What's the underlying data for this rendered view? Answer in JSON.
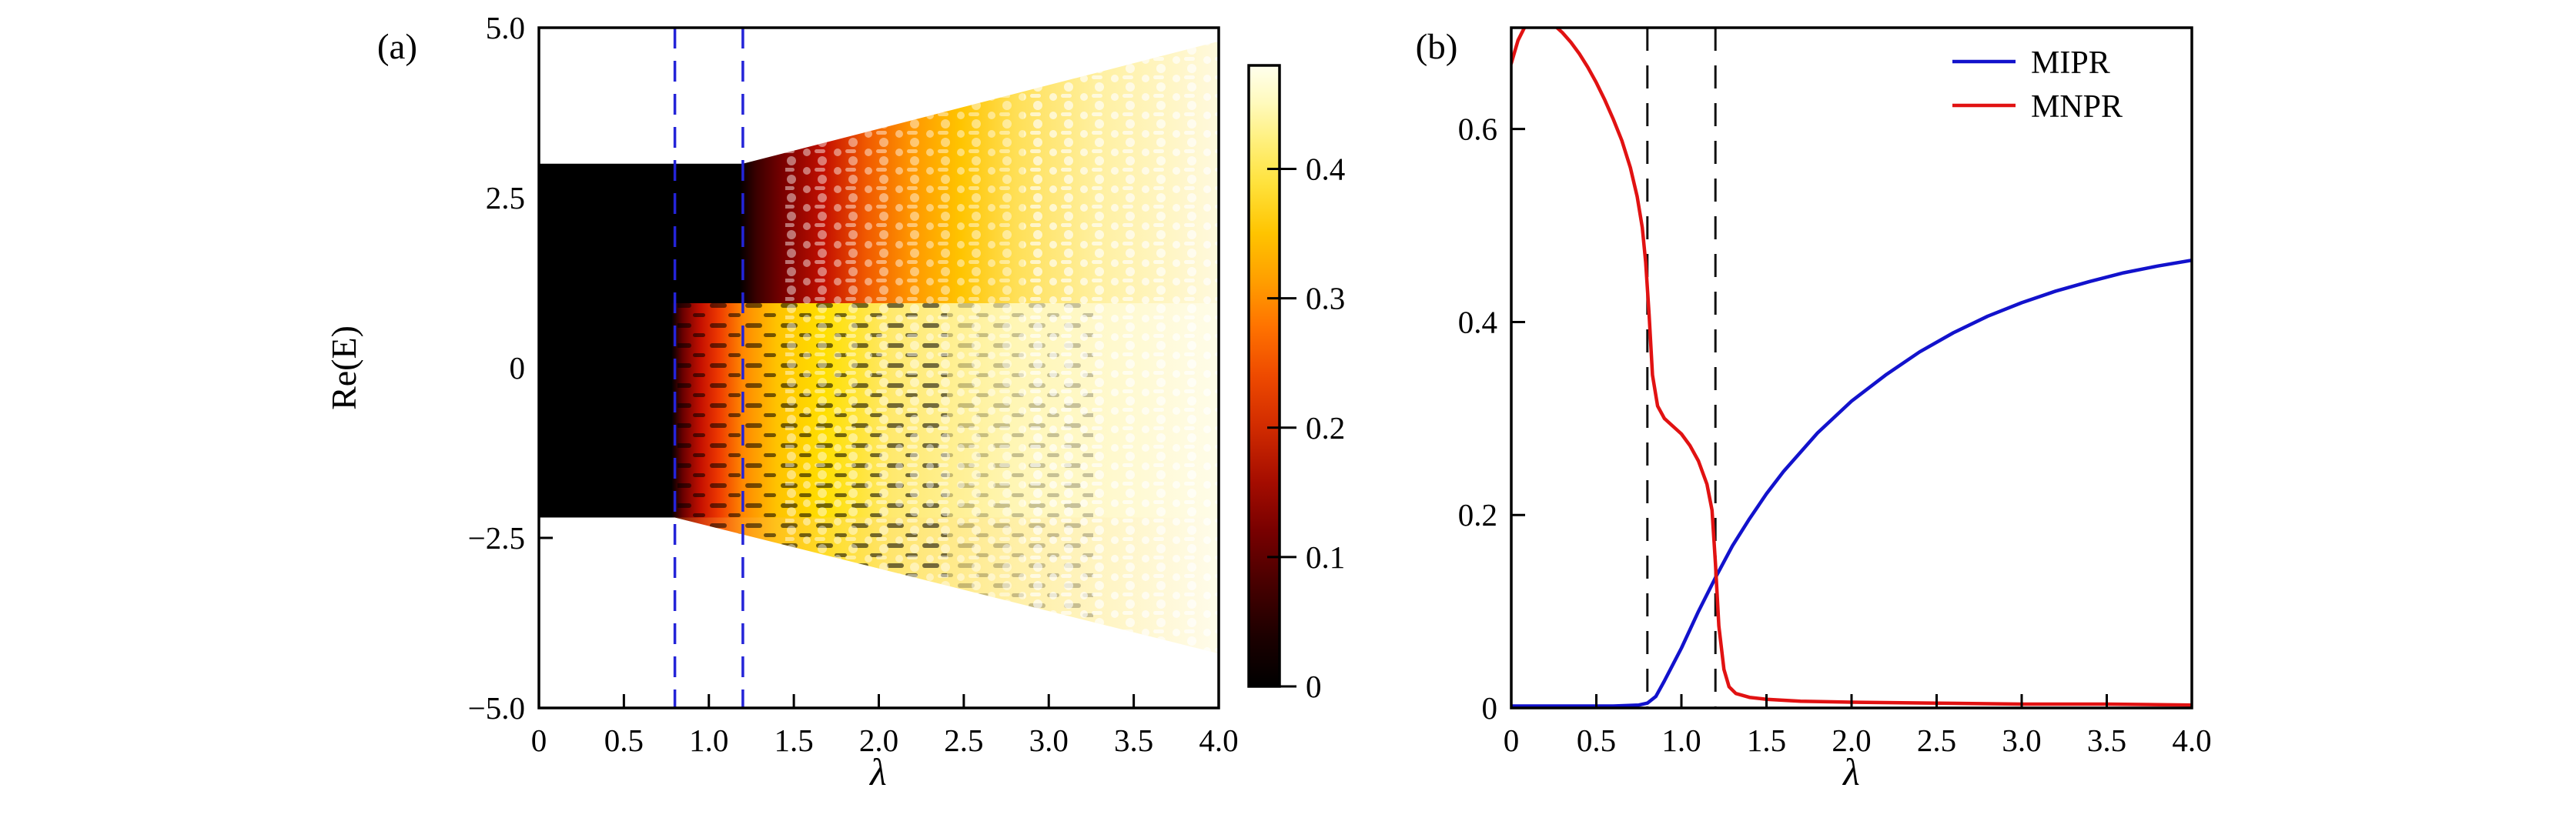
{
  "figure": {
    "background": "#ffffff",
    "panels": [
      {
        "label": "(a)"
      },
      {
        "label": "(b)"
      }
    ]
  },
  "chart_data": [
    {
      "type": "heatmap",
      "panel": "(a)",
      "title": "",
      "xlabel": "λ",
      "ylabel": "Re(E)",
      "xlim": [
        0,
        4
      ],
      "ylim": [
        -5,
        5
      ],
      "xticks": [
        "0",
        "0.5",
        "1.0",
        "1.5",
        "2.0",
        "2.5",
        "3.0",
        "3.5",
        "4.0"
      ],
      "xtick_values": [
        0,
        0.5,
        1,
        1.5,
        2,
        2.5,
        3,
        3.5,
        4
      ],
      "yticks": [
        "5.0",
        "2.5",
        "0",
        "−2.5",
        "−5.0"
      ],
      "ytick_values": [
        5,
        2.5,
        0,
        -2.5,
        -5
      ],
      "grid": false,
      "dashed_guides": {
        "lambda_values": [
          0.8,
          1.2
        ],
        "color": "#2424d8",
        "style": "dashed"
      },
      "colorbar": {
        "range": [
          0,
          0.48
        ],
        "tick_labels": [
          "0.4",
          "0.3",
          "0.2",
          "0.1",
          "0"
        ],
        "tick_values": [
          0.4,
          0.3,
          0.2,
          0.1,
          0
        ],
        "colormap": "hot: black → dark red → red → orange → yellow → white"
      },
      "spectrum": {
        "band_re_min": -2.2,
        "band_re_max": 3.0,
        "boundary_re": 0.95,
        "lower_band_delocalization_lambda": 0.8,
        "upper_band_delocalization_lambda": 1.2,
        "fan_top_re_at_lambda_max": 4.8,
        "fan_bottom_re_at_lambda_max": -4.2,
        "color_meaning": "eigenstate IPR: black = localized (≈0), pale yellow/white = extended (≈0.48)"
      }
    },
    {
      "type": "line",
      "panel": "(b)",
      "title": "",
      "xlabel": "λ",
      "ylabel": "",
      "xlim": [
        0,
        4
      ],
      "ylim": [
        0,
        0.705
      ],
      "xticks": [
        "0",
        "0.5",
        "1.0",
        "1.5",
        "2.0",
        "2.5",
        "3.0",
        "3.5",
        "4.0"
      ],
      "xtick_values": [
        0,
        0.5,
        1,
        1.5,
        2,
        2.5,
        3,
        3.5,
        4
      ],
      "yticks": [
        "0.6",
        "0.4",
        "0.2",
        "0"
      ],
      "ytick_values": [
        0.6,
        0.4,
        0.2,
        0
      ],
      "grid": false,
      "legend_position": "top-right",
      "dashed_guides": {
        "lambda_values": [
          0.8,
          1.2
        ],
        "color": "#111111",
        "style": "dashed"
      },
      "series": [
        {
          "name": "MIPR",
          "color": "#1212cc",
          "x": [
            0,
            0.3,
            0.6,
            0.75,
            0.8,
            0.85,
            0.9,
            0.95,
            1.0,
            1.1,
            1.2,
            1.3,
            1.4,
            1.5,
            1.6,
            1.8,
            2.0,
            2.2,
            2.4,
            2.6,
            2.8,
            3.0,
            3.2,
            3.4,
            3.6,
            3.8,
            4.0
          ],
          "y": [
            0.002,
            0.002,
            0.002,
            0.003,
            0.005,
            0.012,
            0.028,
            0.045,
            0.062,
            0.1,
            0.135,
            0.168,
            0.196,
            0.222,
            0.245,
            0.285,
            0.318,
            0.345,
            0.369,
            0.389,
            0.406,
            0.42,
            0.432,
            0.442,
            0.451,
            0.458,
            0.464
          ]
        },
        {
          "name": "MNPR",
          "color": "#e11212",
          "x": [
            0,
            0.04,
            0.08,
            0.12,
            0.18,
            0.25,
            0.3,
            0.35,
            0.4,
            0.45,
            0.5,
            0.55,
            0.6,
            0.65,
            0.7,
            0.74,
            0.77,
            0.79,
            0.81,
            0.83,
            0.86,
            0.9,
            0.95,
            1.0,
            1.05,
            1.1,
            1.15,
            1.18,
            1.2,
            1.22,
            1.25,
            1.28,
            1.32,
            1.4,
            1.5,
            1.7,
            2.0,
            2.5,
            3.0,
            3.5,
            4.0
          ],
          "y": [
            0.668,
            0.692,
            0.706,
            0.712,
            0.713,
            0.708,
            0.7,
            0.69,
            0.678,
            0.664,
            0.648,
            0.63,
            0.61,
            0.588,
            0.56,
            0.53,
            0.498,
            0.462,
            0.408,
            0.345,
            0.313,
            0.3,
            0.292,
            0.284,
            0.272,
            0.256,
            0.232,
            0.205,
            0.15,
            0.085,
            0.04,
            0.022,
            0.015,
            0.011,
            0.009,
            0.007,
            0.006,
            0.005,
            0.004,
            0.004,
            0.003
          ]
        }
      ]
    }
  ]
}
